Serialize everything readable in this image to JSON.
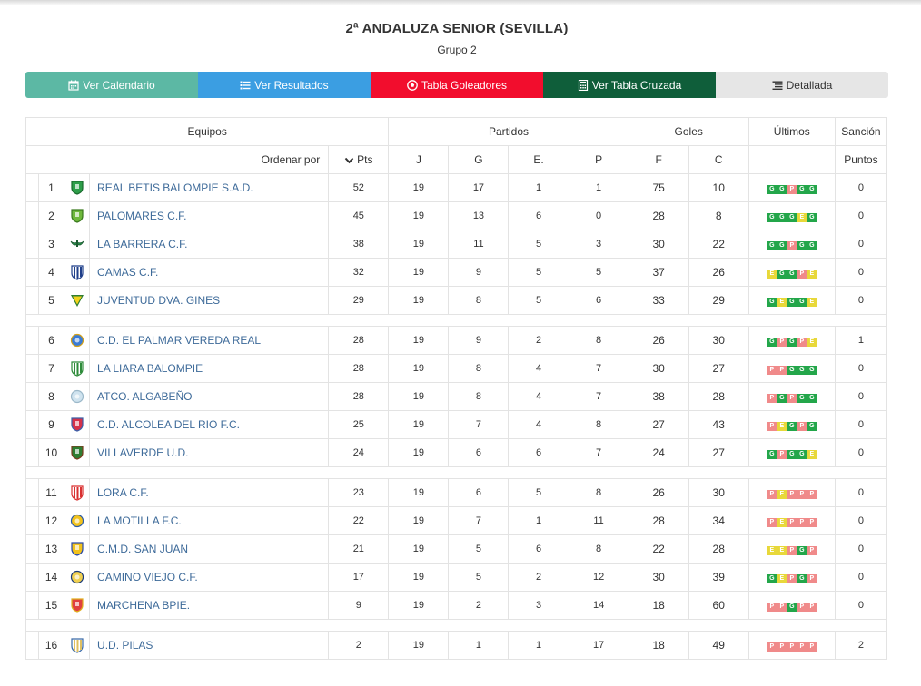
{
  "title": "2ª ANDALUZA SENIOR (SEVILLA)",
  "subtitle": "Grupo 2",
  "nav": [
    {
      "label": "Ver Calendario",
      "icon": "calendar-icon",
      "color": "#5cb8a4"
    },
    {
      "label": "Ver Resultados",
      "icon": "list-icon",
      "color": "#3b9ee2"
    },
    {
      "label": "Tabla Goleadores",
      "icon": "soccer-ball-icon",
      "color": "#f20d2d"
    },
    {
      "label": "Ver Tabla Cruzada",
      "icon": "calculator-icon",
      "color": "#0f5e3a"
    },
    {
      "label": "Detallada",
      "icon": "detailed-list-icon",
      "color": "#e6e6e6"
    }
  ],
  "headers": {
    "equipos": "Equipos",
    "partidos": "Partidos",
    "goles": "Goles",
    "ultimos": "Últimos",
    "sancion": "Sanción",
    "ordenar": "Ordenar por",
    "pts": "Pts",
    "j": "J",
    "g": "G",
    "e": "E.",
    "p": "P",
    "f": "F",
    "c": "C",
    "puntos": "Puntos"
  },
  "rows": [
    {
      "pos": "1",
      "team": "REAL BETIS BALOMPIE S.A.D.",
      "pts": "52",
      "j": "19",
      "g": "17",
      "e": "1",
      "p": "1",
      "f": "75",
      "c": "10",
      "last": [
        "G",
        "G",
        "P",
        "G",
        "G"
      ],
      "sancion": "0",
      "crest": {
        "shape": "shield",
        "fill": "#2e9e4a",
        "stroke": "#1a6b2e"
      }
    },
    {
      "pos": "2",
      "team": "PALOMARES C.F.",
      "pts": "45",
      "j": "19",
      "g": "13",
      "e": "6",
      "p": "0",
      "f": "28",
      "c": "8",
      "last": [
        "G",
        "G",
        "G",
        "E",
        "G"
      ],
      "sancion": "0",
      "crest": {
        "shape": "shield",
        "fill": "#6fb83c",
        "stroke": "#3a7a1e"
      }
    },
    {
      "pos": "3",
      "team": "LA BARRERA C.F.",
      "pts": "38",
      "j": "19",
      "g": "11",
      "e": "5",
      "p": "3",
      "f": "30",
      "c": "22",
      "last": [
        "G",
        "G",
        "P",
        "G",
        "G"
      ],
      "sancion": "0",
      "crest": {
        "shape": "wing",
        "fill": "#2a8a4a",
        "stroke": "#1b5c31"
      }
    },
    {
      "pos": "4",
      "team": "CAMAS C.F.",
      "pts": "32",
      "j": "19",
      "g": "9",
      "e": "5",
      "p": "5",
      "f": "37",
      "c": "26",
      "last": [
        "E",
        "G",
        "G",
        "P",
        "E"
      ],
      "sancion": "0",
      "crest": {
        "shape": "stripes",
        "fill": "#1f3f8a",
        "stroke": "#1f3f8a"
      }
    },
    {
      "pos": "5",
      "team": "JUVENTUD DVA. GINES",
      "pts": "29",
      "j": "19",
      "g": "8",
      "e": "5",
      "p": "6",
      "f": "33",
      "c": "29",
      "last": [
        "G",
        "E",
        "G",
        "G",
        "E"
      ],
      "sancion": "0",
      "crest": {
        "shape": "triangle",
        "fill": "#f2d21b",
        "stroke": "#2e7d32"
      }
    },
    {
      "spacer": true
    },
    {
      "pos": "6",
      "team": "C.D. EL PALMAR VEREDA REAL",
      "pts": "28",
      "j": "19",
      "g": "9",
      "e": "2",
      "p": "8",
      "f": "26",
      "c": "30",
      "last": [
        "G",
        "P",
        "G",
        "P",
        "E"
      ],
      "sancion": "1",
      "crest": {
        "shape": "circle",
        "fill": "#3a7bd5",
        "stroke": "#d4a017"
      }
    },
    {
      "pos": "7",
      "team": "LA LIARA BALOMPIE",
      "pts": "28",
      "j": "19",
      "g": "8",
      "e": "4",
      "p": "7",
      "f": "30",
      "c": "27",
      "last": [
        "P",
        "P",
        "G",
        "G",
        "G"
      ],
      "sancion": "0",
      "crest": {
        "shape": "stripes",
        "fill": "#2e8b3a",
        "stroke": "#2e8b3a"
      }
    },
    {
      "pos": "8",
      "team": "ATCO. ALGABEÑO",
      "pts": "28",
      "j": "19",
      "g": "8",
      "e": "4",
      "p": "7",
      "f": "38",
      "c": "28",
      "last": [
        "P",
        "G",
        "P",
        "G",
        "G"
      ],
      "sancion": "0",
      "crest": {
        "shape": "circle",
        "fill": "#cfe3ef",
        "stroke": "#9bb8c9"
      }
    },
    {
      "pos": "9",
      "team": "C.D. ALCOLEA DEL RIO F.C.",
      "pts": "25",
      "j": "19",
      "g": "7",
      "e": "4",
      "p": "8",
      "f": "27",
      "c": "43",
      "last": [
        "P",
        "E",
        "G",
        "P",
        "G"
      ],
      "sancion": "0",
      "crest": {
        "shape": "shield",
        "fill": "#d6324a",
        "stroke": "#3b5fa8"
      }
    },
    {
      "pos": "10",
      "team": "VILLAVERDE U.D.",
      "pts": "24",
      "j": "19",
      "g": "6",
      "e": "6",
      "p": "7",
      "f": "24",
      "c": "27",
      "last": [
        "G",
        "P",
        "G",
        "G",
        "E"
      ],
      "sancion": "0",
      "crest": {
        "shape": "shield",
        "fill": "#2e7d32",
        "stroke": "#7a3b1e"
      }
    },
    {
      "spacer": true
    },
    {
      "pos": "11",
      "team": "LORA C.F.",
      "pts": "23",
      "j": "19",
      "g": "6",
      "e": "5",
      "p": "8",
      "f": "26",
      "c": "30",
      "last": [
        "P",
        "E",
        "P",
        "P",
        "P"
      ],
      "sancion": "0",
      "crest": {
        "shape": "stripes",
        "fill": "#d93030",
        "stroke": "#d93030"
      }
    },
    {
      "pos": "12",
      "team": "LA MOTILLA F.C.",
      "pts": "22",
      "j": "19",
      "g": "7",
      "e": "1",
      "p": "11",
      "f": "28",
      "c": "34",
      "last": [
        "P",
        "E",
        "P",
        "P",
        "P"
      ],
      "sancion": "0",
      "crest": {
        "shape": "circle",
        "fill": "#f2c21b",
        "stroke": "#2a5aa8"
      }
    },
    {
      "pos": "13",
      "team": "C.M.D. SAN JUAN",
      "pts": "21",
      "j": "19",
      "g": "5",
      "e": "6",
      "p": "8",
      "f": "22",
      "c": "28",
      "last": [
        "E",
        "E",
        "P",
        "G",
        "P"
      ],
      "sancion": "0",
      "crest": {
        "shape": "shield",
        "fill": "#f2c21b",
        "stroke": "#2a4aa8"
      }
    },
    {
      "pos": "14",
      "team": "CAMINO VIEJO C.F.",
      "pts": "17",
      "j": "19",
      "g": "5",
      "e": "2",
      "p": "12",
      "f": "30",
      "c": "39",
      "last": [
        "G",
        "E",
        "P",
        "G",
        "P"
      ],
      "sancion": "0",
      "crest": {
        "shape": "circle",
        "fill": "#f0d050",
        "stroke": "#1a3a7a"
      }
    },
    {
      "pos": "15",
      "team": "MARCHENA BPIE.",
      "pts": "9",
      "j": "19",
      "g": "2",
      "e": "3",
      "p": "14",
      "f": "18",
      "c": "60",
      "last": [
        "P",
        "P",
        "G",
        "P",
        "P"
      ],
      "sancion": "0",
      "crest": {
        "shape": "shield",
        "fill": "#e04040",
        "stroke": "#e0b020"
      }
    },
    {
      "spacer": true
    },
    {
      "pos": "16",
      "team": "U.D. PILAS",
      "pts": "2",
      "j": "19",
      "g": "1",
      "e": "1",
      "p": "17",
      "f": "18",
      "c": "49",
      "last": [
        "P",
        "P",
        "P",
        "P",
        "P"
      ],
      "sancion": "2",
      "crest": {
        "shape": "stripes",
        "fill": "#e0c060",
        "stroke": "#3a6aa8"
      }
    }
  ]
}
